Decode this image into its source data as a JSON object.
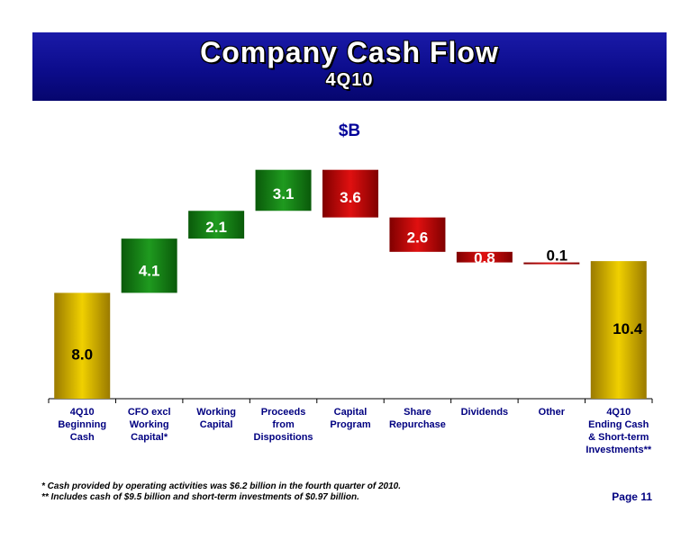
{
  "header": {
    "title": "Company Cash Flow",
    "subtitle": "4Q10"
  },
  "unit_label": "$B",
  "footnotes": [
    "* Cash provided by operating activities was $6.2 billion in the fourth quarter of 2010.",
    "** Includes cash of $9.5 billion and short-term investments of $0.97 billion."
  ],
  "page_label": "Page 11",
  "colors": {
    "banner": "#0c0c8c",
    "gold": "#d4a800",
    "increase": "#1a8a1a",
    "decrease": "#c40000",
    "unit_text": "#000099"
  },
  "chart_data": {
    "type": "bar",
    "subtype": "waterfall",
    "unit": "$B",
    "categories": [
      [
        "4Q10",
        "Beginning",
        "Cash"
      ],
      [
        "CFO  excl",
        "Working",
        "Capital*"
      ],
      [
        "Working",
        "Capital"
      ],
      [
        "Proceeds",
        "from",
        "Dispositions"
      ],
      [
        "Capital",
        "Program"
      ],
      [
        "Share",
        "Repurchase"
      ],
      [
        "Dividends"
      ],
      [
        "Other"
      ],
      [
        "4Q10",
        "Ending Cash",
        "& Short-term",
        "Investments**"
      ]
    ],
    "steps": [
      {
        "kind": "total",
        "value": 8.0,
        "label": "8.0"
      },
      {
        "kind": "increase",
        "value": 4.1,
        "label": "4.1"
      },
      {
        "kind": "increase",
        "value": 2.1,
        "label": "2.1"
      },
      {
        "kind": "increase",
        "value": 3.1,
        "label": "3.1"
      },
      {
        "kind": "decrease",
        "value": 3.6,
        "label": "3.6"
      },
      {
        "kind": "decrease",
        "value": 2.6,
        "label": "2.6"
      },
      {
        "kind": "decrease",
        "value": 0.8,
        "label": "0.8"
      },
      {
        "kind": "decrease",
        "value": 0.1,
        "label": "0.1"
      },
      {
        "kind": "total",
        "value": 10.4,
        "label": "10.4"
      }
    ],
    "ylim": [
      0,
      20
    ],
    "grid": false,
    "legend": "none"
  }
}
